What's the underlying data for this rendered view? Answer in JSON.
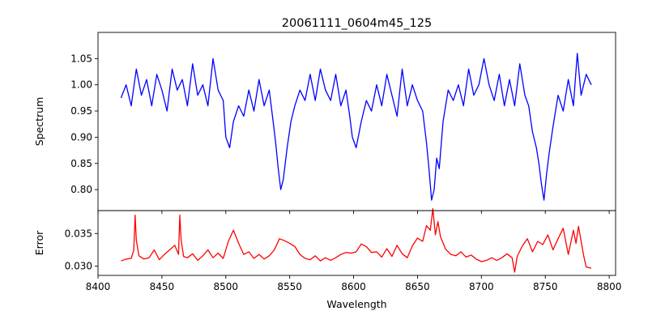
{
  "chart_data": [
    {
      "panel": "spectrum",
      "type": "line",
      "title": "20061111_0604m45_125",
      "xlabel": "",
      "ylabel": "Spectrum",
      "xlim": [
        8400,
        8805
      ],
      "ylim": [
        0.76,
        1.1
      ],
      "xticks": [
        8400,
        8450,
        8500,
        8550,
        8600,
        8650,
        8700,
        8750,
        8800
      ],
      "yticks": [
        0.8,
        0.85,
        0.9,
        0.95,
        1.0,
        1.05
      ],
      "ytick_labels": [
        "0.80",
        "0.85",
        "0.90",
        "0.95",
        "1.00",
        "1.05"
      ],
      "color": "#0000ff",
      "series": [
        {
          "name": "Spectrum",
          "x": [
            8418,
            8422,
            8426,
            8430,
            8434,
            8438,
            8442,
            8446,
            8450,
            8454,
            8458,
            8462,
            8466,
            8470,
            8474,
            8478,
            8482,
            8486,
            8490,
            8494,
            8498,
            8500,
            8503,
            8506,
            8510,
            8514,
            8518,
            8522,
            8526,
            8530,
            8534,
            8537,
            8539,
            8541,
            8543,
            8545,
            8548,
            8551,
            8554,
            8558,
            8562,
            8566,
            8570,
            8574,
            8578,
            8582,
            8586,
            8590,
            8594,
            8597,
            8599,
            8602,
            8606,
            8610,
            8614,
            8618,
            8622,
            8626,
            8630,
            8634,
            8638,
            8642,
            8646,
            8650,
            8654,
            8657,
            8659,
            8661,
            8663,
            8665,
            8667,
            8670,
            8674,
            8678,
            8682,
            8686,
            8690,
            8694,
            8698,
            8702,
            8706,
            8710,
            8714,
            8718,
            8722,
            8726,
            8730,
            8734,
            8737,
            8740,
            8743,
            8745,
            8747,
            8749,
            8751,
            8753,
            8756,
            8760,
            8764,
            8768,
            8772,
            8775,
            8778,
            8782,
            8786
          ],
          "y": [
            0.975,
            1.0,
            0.96,
            1.03,
            0.98,
            1.01,
            0.96,
            1.02,
            0.99,
            0.95,
            1.03,
            0.99,
            1.01,
            0.96,
            1.04,
            0.98,
            1.0,
            0.96,
            1.05,
            0.99,
            0.97,
            0.9,
            0.88,
            0.93,
            0.96,
            0.94,
            0.99,
            0.95,
            1.01,
            0.96,
            0.99,
            0.93,
            0.89,
            0.84,
            0.8,
            0.82,
            0.88,
            0.93,
            0.96,
            0.99,
            0.97,
            1.02,
            0.97,
            1.03,
            0.99,
            0.97,
            1.02,
            0.96,
            0.99,
            0.94,
            0.9,
            0.88,
            0.93,
            0.97,
            0.95,
            1.0,
            0.96,
            1.02,
            0.98,
            0.94,
            1.03,
            0.96,
            1.0,
            0.97,
            0.95,
            0.89,
            0.84,
            0.78,
            0.8,
            0.86,
            0.84,
            0.93,
            0.99,
            0.97,
            1.0,
            0.96,
            1.03,
            0.98,
            1.0,
            1.05,
            1.0,
            0.97,
            1.02,
            0.96,
            1.01,
            0.96,
            1.04,
            0.98,
            0.96,
            0.91,
            0.88,
            0.85,
            0.81,
            0.78,
            0.83,
            0.87,
            0.92,
            0.98,
            0.95,
            1.01,
            0.96,
            1.06,
            0.98,
            1.02,
            1.0
          ]
        }
      ]
    },
    {
      "panel": "error",
      "type": "line",
      "title": "",
      "xlabel": "Wavelength",
      "ylabel": "Error",
      "xlim": [
        8400,
        8805
      ],
      "ylim": [
        0.0286,
        0.0385
      ],
      "xticks": [
        8400,
        8450,
        8500,
        8550,
        8600,
        8650,
        8700,
        8750,
        8800
      ],
      "yticks": [
        0.03,
        0.035
      ],
      "ytick_labels": [
        "0.030",
        "0.035"
      ],
      "color": "#ff0000",
      "series": [
        {
          "name": "Error",
          "x": [
            8418,
            8422,
            8426,
            8428,
            8429,
            8430,
            8432,
            8436,
            8440,
            8444,
            8448,
            8452,
            8456,
            8460,
            8463,
            8464,
            8465,
            8467,
            8470,
            8474,
            8478,
            8482,
            8486,
            8490,
            8494,
            8498,
            8502,
            8506,
            8510,
            8514,
            8518,
            8522,
            8526,
            8530,
            8534,
            8538,
            8542,
            8546,
            8550,
            8554,
            8558,
            8562,
            8566,
            8570,
            8574,
            8578,
            8582,
            8586,
            8590,
            8594,
            8598,
            8602,
            8606,
            8610,
            8614,
            8618,
            8622,
            8626,
            8630,
            8634,
            8638,
            8642,
            8646,
            8650,
            8654,
            8657,
            8660,
            8662,
            8664,
            8666,
            8668,
            8672,
            8676,
            8680,
            8684,
            8688,
            8692,
            8696,
            8700,
            8704,
            8708,
            8712,
            8716,
            8720,
            8724,
            8726,
            8728,
            8732,
            8736,
            8740,
            8744,
            8748,
            8752,
            8756,
            8760,
            8764,
            8768,
            8772,
            8774,
            8776,
            8780,
            8782,
            8786
          ],
          "y": [
            0.0308,
            0.0311,
            0.0312,
            0.0325,
            0.0378,
            0.034,
            0.0316,
            0.0311,
            0.0313,
            0.0325,
            0.031,
            0.0318,
            0.0325,
            0.0332,
            0.0318,
            0.0378,
            0.034,
            0.0315,
            0.0313,
            0.0319,
            0.0309,
            0.0316,
            0.0325,
            0.0313,
            0.032,
            0.0312,
            0.0338,
            0.0355,
            0.0335,
            0.0318,
            0.0322,
            0.0312,
            0.0318,
            0.0311,
            0.0316,
            0.0325,
            0.0342,
            0.0339,
            0.0335,
            0.033,
            0.0318,
            0.0312,
            0.031,
            0.0316,
            0.0308,
            0.0313,
            0.0309,
            0.0313,
            0.0318,
            0.0321,
            0.032,
            0.0322,
            0.0334,
            0.033,
            0.0321,
            0.0322,
            0.0314,
            0.0327,
            0.0315,
            0.0332,
            0.0319,
            0.0313,
            0.0331,
            0.0343,
            0.0338,
            0.0362,
            0.0355,
            0.0388,
            0.0348,
            0.0368,
            0.0345,
            0.0326,
            0.0318,
            0.0316,
            0.0322,
            0.0314,
            0.0317,
            0.0311,
            0.0307,
            0.0309,
            0.0313,
            0.0309,
            0.0313,
            0.0319,
            0.0313,
            0.0291,
            0.0315,
            0.0331,
            0.0342,
            0.0322,
            0.0338,
            0.0333,
            0.0348,
            0.0325,
            0.0342,
            0.0358,
            0.0318,
            0.0355,
            0.0335,
            0.0361,
            0.0316,
            0.0299,
            0.0297
          ]
        }
      ]
    }
  ]
}
